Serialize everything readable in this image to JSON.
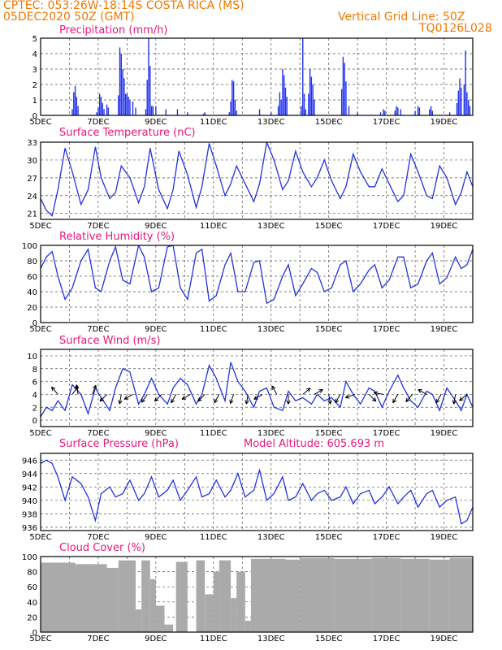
{
  "header": {
    "left_line1": "CPTEC:   053:26W-18:14S   COSTA RICA (MS)",
    "left_line2": "05DEC2020 50Z (GMT)",
    "right_line1": "Vertical Grid Line: 50Z",
    "right_line2": "TQ0126L028"
  },
  "panels_common": {
    "x_tick_labels": [
      "5DEC",
      "7DEC",
      "9DEC",
      "11DEC",
      "13DEC",
      "15DEC",
      "17DEC",
      "19DEC"
    ],
    "x_start_day": 5,
    "x_end_day": 20,
    "line_color": "#2233dd",
    "bar_color": "#2233ee",
    "cloud_color": "#aaaaaa"
  },
  "panels": {
    "precip": {
      "title": "Precipitation (mm/h)"
    },
    "temp": {
      "title": "Surface Temperature (nC)"
    },
    "rh": {
      "title": "Relative Humidity (%)"
    },
    "wind": {
      "title": "Surface Wind (m/s)"
    },
    "press": {
      "title": "Surface Pressure (hPa)",
      "extra": "Model Altitude: 605.693 m"
    },
    "cloud": {
      "title": "Cloud Cover (%)"
    }
  },
  "chart_data": [
    {
      "id": "precip",
      "type": "bar",
      "title": "Precipitation (mm/h)",
      "ylim": [
        0,
        5
      ],
      "yticks": [
        0,
        1,
        2,
        3,
        4,
        5
      ],
      "bars": [
        [
          6.1,
          0.4
        ],
        [
          6.15,
          1.5
        ],
        [
          6.2,
          1.9
        ],
        [
          6.25,
          1.2
        ],
        [
          6.3,
          0.6
        ],
        [
          6.95,
          0.2
        ],
        [
          7.0,
          0.5
        ],
        [
          7.05,
          1.4
        ],
        [
          7.1,
          1.2
        ],
        [
          7.15,
          0.8
        ],
        [
          7.2,
          0.4
        ],
        [
          7.3,
          0.7
        ],
        [
          7.35,
          0.5
        ],
        [
          7.7,
          1.3
        ],
        [
          7.75,
          4.4
        ],
        [
          7.8,
          4.0
        ],
        [
          7.85,
          3.0
        ],
        [
          7.9,
          2.4
        ],
        [
          7.95,
          1.4
        ],
        [
          8.0,
          1.4
        ],
        [
          8.05,
          1.2
        ],
        [
          8.1,
          1.0
        ],
        [
          8.2,
          0.9
        ],
        [
          8.3,
          0.5
        ],
        [
          8.65,
          0.4
        ],
        [
          8.7,
          2.3
        ],
        [
          8.75,
          5.0
        ],
        [
          8.8,
          3.2
        ],
        [
          8.85,
          0.6
        ],
        [
          8.9,
          0.6
        ],
        [
          9.0,
          0.6
        ],
        [
          9.35,
          0.4
        ],
        [
          9.75,
          0.4
        ],
        [
          10.1,
          0.2
        ],
        [
          10.65,
          0.1
        ],
        [
          10.7,
          0.2
        ],
        [
          11.55,
          0.2
        ],
        [
          11.6,
          0.9
        ],
        [
          11.65,
          2.3
        ],
        [
          11.7,
          2.2
        ],
        [
          11.75,
          1.0
        ],
        [
          11.8,
          0.3
        ],
        [
          12.6,
          0.4
        ],
        [
          13.0,
          0.2
        ],
        [
          13.25,
          0.6
        ],
        [
          13.3,
          1.5
        ],
        [
          13.35,
          1.0
        ],
        [
          13.4,
          3.0
        ],
        [
          13.45,
          2.6
        ],
        [
          13.5,
          1.8
        ],
        [
          13.55,
          1.2
        ],
        [
          14.05,
          0.6
        ],
        [
          14.1,
          5.0
        ],
        [
          14.15,
          1.4
        ],
        [
          14.2,
          0.4
        ],
        [
          14.3,
          1.4
        ],
        [
          14.35,
          3.0
        ],
        [
          14.4,
          2.5
        ],
        [
          14.45,
          2.0
        ],
        [
          14.5,
          1.0
        ],
        [
          15.45,
          1.7
        ],
        [
          15.5,
          3.8
        ],
        [
          15.55,
          3.4
        ],
        [
          15.6,
          2.2
        ],
        [
          15.7,
          0.6
        ],
        [
          16.0,
          0.2
        ],
        [
          16.8,
          0.2
        ],
        [
          16.9,
          0.4
        ],
        [
          16.95,
          0.3
        ],
        [
          17.3,
          0.3
        ],
        [
          17.35,
          0.6
        ],
        [
          17.4,
          0.5
        ],
        [
          17.5,
          0.4
        ],
        [
          18.0,
          0.3
        ],
        [
          18.1,
          0.6
        ],
        [
          18.15,
          0.5
        ],
        [
          18.5,
          0.4
        ],
        [
          18.55,
          0.6
        ],
        [
          18.6,
          0.3
        ],
        [
          19.2,
          0.2
        ],
        [
          19.45,
          0.8
        ],
        [
          19.5,
          1.6
        ],
        [
          19.55,
          2.4
        ],
        [
          19.6,
          1.8
        ],
        [
          19.7,
          2.0
        ],
        [
          19.75,
          4.2
        ],
        [
          19.8,
          1.5
        ],
        [
          19.85,
          1.0
        ],
        [
          19.9,
          0.6
        ]
      ]
    },
    {
      "id": "temp",
      "type": "line",
      "title": "Surface Temperature (nC)",
      "ylim": [
        20,
        33
      ],
      "yticks": [
        21,
        24,
        27,
        30,
        33
      ],
      "series": [
        {
          "x": [
            5.0,
            5.2,
            5.4,
            5.6,
            5.85,
            6.1,
            6.4,
            6.65,
            6.9,
            7.1,
            7.4,
            7.6,
            7.8,
            8.1,
            8.4,
            8.6,
            8.8,
            9.1,
            9.4,
            9.6,
            9.8,
            10.1,
            10.4,
            10.6,
            10.85,
            11.1,
            11.4,
            11.6,
            11.8,
            12.1,
            12.4,
            12.6,
            12.85,
            13.1,
            13.4,
            13.6,
            13.85,
            14.1,
            14.4,
            14.6,
            14.85,
            15.1,
            15.4,
            15.6,
            15.85,
            16.1,
            16.4,
            16.6,
            16.85,
            17.1,
            17.4,
            17.6,
            17.85,
            18.1,
            18.4,
            18.6,
            18.85,
            19.1,
            19.4,
            19.6,
            19.8,
            20.0
          ],
          "y": [
            23.5,
            21.5,
            20.6,
            25.0,
            32.0,
            28.0,
            22.5,
            25.0,
            32.2,
            27.0,
            23.5,
            24.5,
            29.0,
            27.0,
            22.8,
            25.5,
            32.0,
            25.0,
            21.8,
            25.0,
            31.5,
            27.5,
            22.0,
            25.5,
            32.8,
            29.0,
            24.0,
            26.0,
            29.0,
            26.0,
            23.0,
            26.0,
            33.0,
            30.0,
            25.0,
            26.5,
            31.5,
            28.0,
            25.5,
            27.0,
            30.0,
            26.5,
            23.5,
            25.5,
            31.0,
            28.0,
            25.5,
            25.5,
            28.5,
            26.0,
            23.0,
            24.0,
            31.0,
            28.0,
            24.0,
            23.5,
            29.0,
            27.0,
            22.5,
            24.5,
            28.0,
            25.5
          ]
        }
      ]
    },
    {
      "id": "rh",
      "type": "line",
      "title": "Relative Humidity (%)",
      "ylim": [
        0,
        100
      ],
      "yticks": [
        0,
        20,
        40,
        60,
        80,
        100
      ],
      "series": [
        {
          "x": [
            5.0,
            5.2,
            5.4,
            5.6,
            5.85,
            6.1,
            6.4,
            6.65,
            6.9,
            7.1,
            7.4,
            7.6,
            7.85,
            8.1,
            8.4,
            8.6,
            8.85,
            9.1,
            9.4,
            9.6,
            9.85,
            10.1,
            10.4,
            10.6,
            10.85,
            11.1,
            11.4,
            11.6,
            11.85,
            12.1,
            12.4,
            12.6,
            12.85,
            13.1,
            13.4,
            13.6,
            13.85,
            14.1,
            14.4,
            14.6,
            14.85,
            15.1,
            15.4,
            15.6,
            15.85,
            16.1,
            16.4,
            16.6,
            16.85,
            17.1,
            17.4,
            17.6,
            17.85,
            18.1,
            18.4,
            18.6,
            18.85,
            19.1,
            19.4,
            19.6,
            19.8,
            20.0
          ],
          "y": [
            70,
            85,
            92,
            60,
            30,
            45,
            80,
            95,
            45,
            40,
            80,
            98,
            55,
            50,
            100,
            85,
            40,
            45,
            98,
            100,
            45,
            30,
            90,
            95,
            28,
            35,
            75,
            90,
            40,
            40,
            78,
            80,
            25,
            30,
            60,
            75,
            35,
            50,
            70,
            65,
            40,
            45,
            75,
            80,
            40,
            50,
            68,
            75,
            45,
            55,
            85,
            85,
            45,
            50,
            80,
            90,
            50,
            58,
            85,
            70,
            75,
            95
          ]
        }
      ]
    },
    {
      "id": "wind",
      "type": "line",
      "title": "Surface Wind (m/s)",
      "ylim": [
        -1,
        11
      ],
      "yticks": [
        0,
        2,
        4,
        6,
        8,
        10
      ],
      "series": [
        {
          "x": [
            5.0,
            5.2,
            5.4,
            5.6,
            5.85,
            6.1,
            6.4,
            6.65,
            6.9,
            7.1,
            7.4,
            7.6,
            7.85,
            8.1,
            8.4,
            8.6,
            8.85,
            9.1,
            9.4,
            9.6,
            9.85,
            10.1,
            10.4,
            10.6,
            10.85,
            11.1,
            11.4,
            11.6,
            11.85,
            12.1,
            12.4,
            12.6,
            12.85,
            13.1,
            13.4,
            13.6,
            13.85,
            14.1,
            14.4,
            14.6,
            14.85,
            15.1,
            15.4,
            15.6,
            15.85,
            16.1,
            16.4,
            16.6,
            16.85,
            17.1,
            17.4,
            17.6,
            17.85,
            18.1,
            18.4,
            18.6,
            18.85,
            19.1,
            19.4,
            19.6,
            19.8,
            20.0
          ],
          "y": [
            0.5,
            2.0,
            1.5,
            3.0,
            1.5,
            5.5,
            4.0,
            1.0,
            5.0,
            3.5,
            1.5,
            5.0,
            8.0,
            7.5,
            2.5,
            4.0,
            6.5,
            4.0,
            2.5,
            5.0,
            6.5,
            5.5,
            2.5,
            4.0,
            8.5,
            6.5,
            3.0,
            9.0,
            6.0,
            4.5,
            2.0,
            4.5,
            5.0,
            2.0,
            1.5,
            4.5,
            3.0,
            3.5,
            2.5,
            4.0,
            3.0,
            3.5,
            2.0,
            6.0,
            4.0,
            2.5,
            5.0,
            4.5,
            2.0,
            4.5,
            7.0,
            5.0,
            3.0,
            2.0,
            4.5,
            4.0,
            1.5,
            5.0,
            3.0,
            1.5,
            4.0,
            2.0
          ]
        }
      ],
      "arrows": [
        [
          5.6,
          4.0,
          130
        ],
        [
          6.1,
          4.0,
          55
        ],
        [
          6.3,
          4.0,
          100
        ],
        [
          6.8,
          4.0,
          70
        ],
        [
          7.3,
          4.0,
          -135
        ],
        [
          7.8,
          4.0,
          -100
        ],
        [
          8.2,
          4.0,
          -150
        ],
        [
          8.7,
          4.0,
          -125
        ],
        [
          9.2,
          4.0,
          -135
        ],
        [
          9.7,
          4.0,
          -120
        ],
        [
          10.2,
          4.0,
          -150
        ],
        [
          10.7,
          4.0,
          -135
        ],
        [
          11.2,
          4.0,
          -120
        ],
        [
          11.7,
          4.0,
          -110
        ],
        [
          12.2,
          4.0,
          -100
        ],
        [
          12.7,
          4.0,
          -150
        ],
        [
          13.2,
          4.0,
          120
        ],
        [
          13.6,
          4.0,
          -90
        ],
        [
          14.1,
          4.0,
          40
        ],
        [
          14.5,
          4.0,
          30
        ],
        [
          15.0,
          4.0,
          -80
        ],
        [
          15.4,
          4.0,
          -120
        ],
        [
          15.9,
          4.0,
          -160
        ],
        [
          16.4,
          4.0,
          -45
        ],
        [
          16.9,
          4.0,
          170
        ],
        [
          17.4,
          4.0,
          -120
        ],
        [
          17.9,
          4.0,
          -130
        ],
        [
          18.4,
          4.0,
          150
        ],
        [
          18.9,
          4.0,
          -120
        ],
        [
          19.4,
          4.0,
          -100
        ],
        [
          19.8,
          4.0,
          -140
        ]
      ]
    },
    {
      "id": "press",
      "type": "line",
      "title": "Surface Pressure (hPa)",
      "ylim": [
        935.5,
        947
      ],
      "yticks": [
        936,
        938,
        940,
        942,
        944,
        946
      ],
      "series": [
        {
          "x": [
            5.0,
            5.2,
            5.4,
            5.6,
            5.85,
            6.1,
            6.4,
            6.65,
            6.9,
            7.1,
            7.4,
            7.6,
            7.85,
            8.1,
            8.4,
            8.6,
            8.85,
            9.1,
            9.4,
            9.6,
            9.85,
            10.1,
            10.4,
            10.6,
            10.85,
            11.1,
            11.4,
            11.6,
            11.85,
            12.1,
            12.4,
            12.6,
            12.85,
            13.1,
            13.4,
            13.6,
            13.85,
            14.1,
            14.4,
            14.6,
            14.85,
            15.1,
            15.4,
            15.6,
            15.85,
            16.1,
            16.4,
            16.6,
            16.85,
            17.1,
            17.4,
            17.6,
            17.85,
            18.1,
            18.4,
            18.6,
            18.85,
            19.1,
            19.4,
            19.6,
            19.8,
            20.0
          ],
          "y": [
            945.5,
            946.0,
            945.5,
            943.5,
            940.0,
            943.5,
            942.5,
            940.5,
            937.0,
            941.0,
            942.0,
            940.5,
            941.0,
            943.0,
            940.0,
            941.0,
            943.5,
            940.5,
            941.5,
            943.0,
            940.0,
            941.5,
            943.5,
            940.5,
            941.0,
            943.0,
            940.5,
            941.5,
            944.0,
            940.5,
            941.5,
            944.5,
            940.0,
            941.0,
            943.5,
            940.0,
            940.5,
            942.5,
            940.0,
            941.0,
            941.5,
            940.0,
            940.5,
            942.0,
            939.5,
            941.0,
            941.5,
            939.5,
            940.5,
            942.0,
            939.5,
            940.5,
            941.5,
            939.0,
            941.0,
            941.5,
            939.0,
            940.0,
            940.5,
            936.5,
            937.0,
            939.0
          ]
        }
      ]
    },
    {
      "id": "cloud",
      "type": "bar",
      "title": "Cloud Cover (%)",
      "ylim": [
        0,
        100
      ],
      "yticks": [
        0,
        20,
        40,
        60,
        80,
        100
      ],
      "segments": [
        [
          5.0,
          6.2,
          92
        ],
        [
          6.2,
          7.3,
          90
        ],
        [
          7.3,
          7.7,
          85
        ],
        [
          7.7,
          8.3,
          95
        ],
        [
          8.3,
          8.5,
          30
        ],
        [
          8.5,
          8.8,
          95
        ],
        [
          8.8,
          9.0,
          70
        ],
        [
          9.0,
          9.3,
          35
        ],
        [
          9.3,
          9.6,
          10
        ],
        [
          9.6,
          9.7,
          0
        ],
        [
          9.7,
          10.1,
          93
        ],
        [
          10.1,
          10.4,
          0
        ],
        [
          10.4,
          10.7,
          95
        ],
        [
          10.7,
          11.0,
          50
        ],
        [
          11.0,
          11.2,
          80
        ],
        [
          11.2,
          11.6,
          95
        ],
        [
          11.6,
          11.8,
          45
        ],
        [
          11.8,
          12.1,
          80
        ],
        [
          12.1,
          12.3,
          15
        ],
        [
          12.3,
          13.5,
          97
        ],
        [
          13.5,
          14.0,
          96
        ],
        [
          14.0,
          15.2,
          98
        ],
        [
          15.2,
          16.5,
          97
        ],
        [
          16.5,
          17.5,
          98
        ],
        [
          17.5,
          18.5,
          97
        ],
        [
          18.5,
          19.2,
          96
        ],
        [
          19.2,
          20.0,
          98
        ]
      ]
    }
  ]
}
